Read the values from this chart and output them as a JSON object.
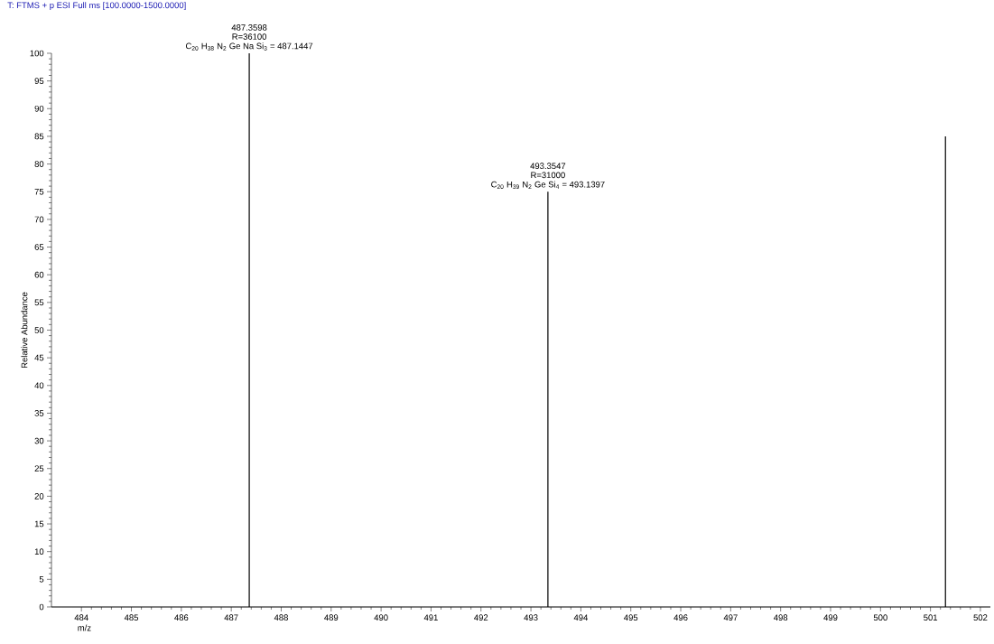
{
  "chart_data": {
    "type": "bar",
    "title": "T: FTMS + p ESI Full ms [100.0000-1500.0000]",
    "xlabel": "m/z",
    "ylabel": "Relative Abundance",
    "x": [
      487.36,
      493.34,
      501.3
    ],
    "values": [
      100,
      75,
      85
    ],
    "color": "#000000",
    "xlim": [
      483.4,
      502.2
    ],
    "ylim": [
      0,
      100
    ],
    "xticks": [
      484,
      485,
      486,
      487,
      488,
      489,
      490,
      491,
      492,
      493,
      494,
      495,
      496,
      497,
      498,
      499,
      500,
      501,
      502
    ],
    "yticks": [
      0,
      5,
      10,
      15,
      20,
      25,
      30,
      35,
      40,
      45,
      50,
      55,
      60,
      65,
      70,
      75,
      80,
      85,
      90,
      95,
      100
    ],
    "grid": false,
    "annotations": [
      "487.3598",
      "R=36100",
      "C$_{20}$ H$_{38}$ N$_{2}$ Ge Na Si$_{3}$ = 487.1447",
      "493.3547",
      "R=31000",
      "C$_{20}$ H$_{39}$ N$_{2}$ Ge Si$_{4}$ = 493.1397"
    ]
  }
}
